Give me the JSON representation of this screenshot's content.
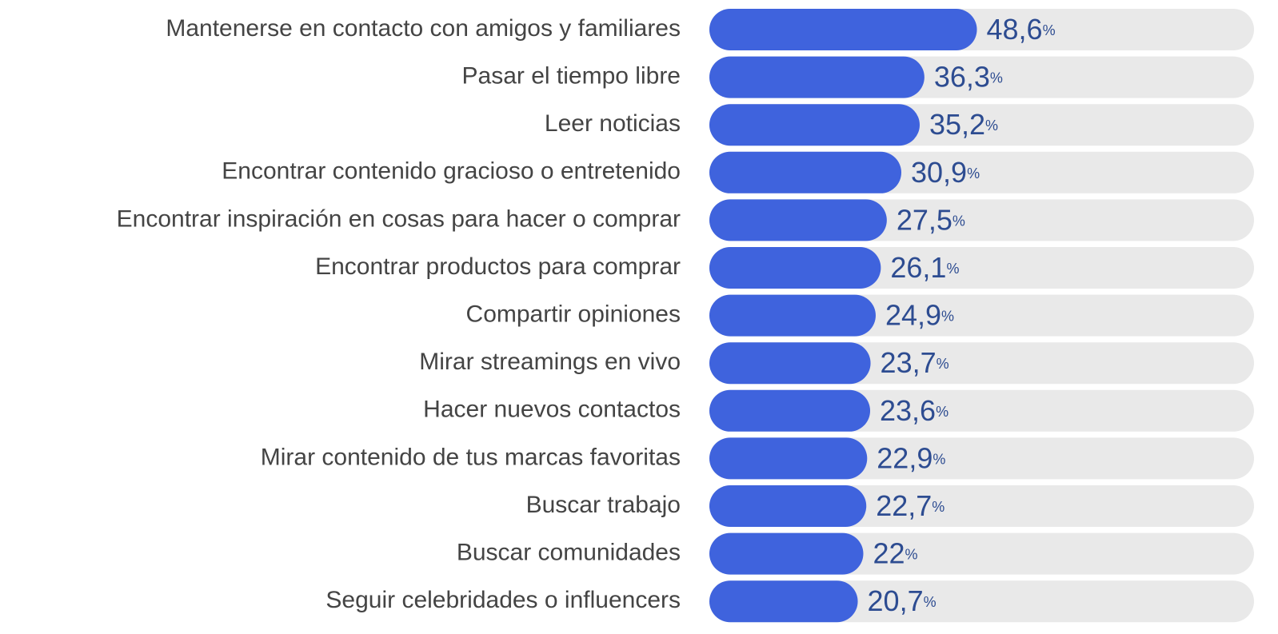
{
  "chart_data": {
    "type": "bar",
    "orientation": "horizontal",
    "categories": [
      "Mantenerse en contacto con amigos y familiares",
      "Pasar el tiempo libre",
      "Leer noticias",
      "Encontrar contenido gracioso o entretenido",
      "Encontrar inspiración en cosas para hacer o comprar",
      "Encontrar productos para comprar",
      "Compartir opiniones",
      "Mirar streamings en vivo",
      "Hacer nuevos contactos",
      "Mirar contenido de tus marcas favoritas",
      "Buscar trabajo",
      "Buscar comunidades",
      "Seguir celebridades o influencers"
    ],
    "values": [
      48.6,
      36.3,
      35.2,
      30.9,
      27.5,
      26.1,
      24.9,
      23.7,
      23.6,
      22.9,
      22.7,
      22,
      20.7
    ],
    "value_labels": [
      "48,6%",
      "36,3%",
      "35,2%",
      "30,9%",
      "27,5%",
      "26,1%",
      "24,9%",
      "23,7%",
      "23,6%",
      "22,9%",
      "22,7%",
      "22%",
      "20,7%"
    ],
    "color": "#3f63dd",
    "track_color": "#e9e9e9"
  }
}
